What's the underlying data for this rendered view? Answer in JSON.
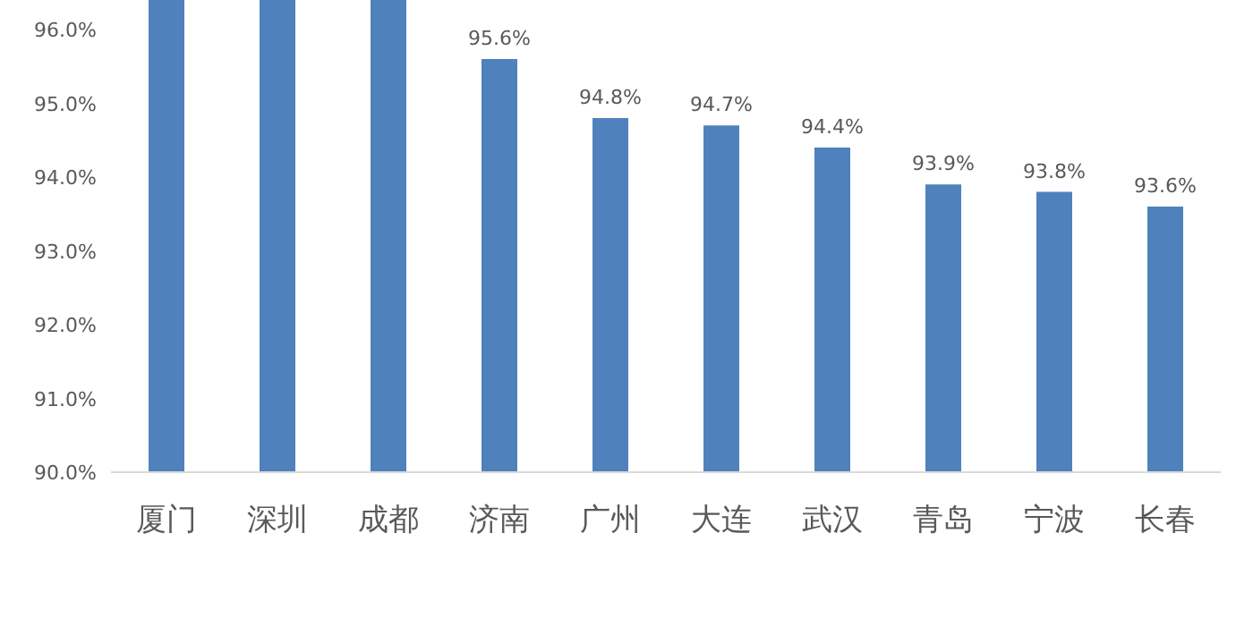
{
  "chart_data": {
    "type": "bar",
    "categories": [
      "厦门",
      "深圳",
      "成都",
      "济南",
      "广州",
      "大连",
      "武汉",
      "青岛",
      "宁波",
      "长春"
    ],
    "values": [
      96.4,
      96.4,
      96.4,
      95.6,
      94.8,
      94.7,
      94.4,
      93.9,
      93.8,
      93.6
    ],
    "value_labels": [
      null,
      null,
      null,
      "95.6%",
      "94.8%",
      "94.7%",
      "94.4%",
      "93.9%",
      "93.8%",
      "93.6%"
    ],
    "color": "#4f81bd",
    "ylim": [
      90,
      96.4
    ],
    "yticks": [
      {
        "value": 90,
        "label": "90.0%"
      },
      {
        "value": 91,
        "label": "91.0%"
      },
      {
        "value": 92,
        "label": "92.0%"
      },
      {
        "value": 93,
        "label": "93.0%"
      },
      {
        "value": 94,
        "label": "94.0%"
      },
      {
        "value": 95,
        "label": "95.0%"
      },
      {
        "value": 96,
        "label": "96.0%"
      }
    ],
    "grid": false
  }
}
